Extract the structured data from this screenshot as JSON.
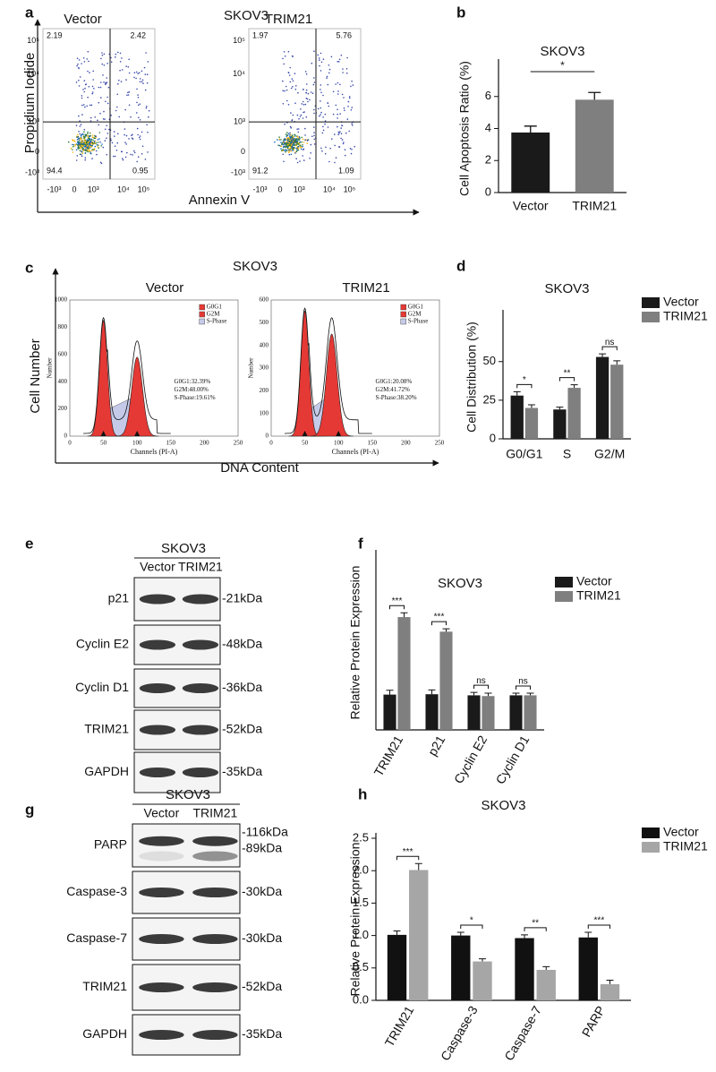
{
  "panels": {
    "a": {
      "panel_label": "a",
      "title": "SKOV3",
      "y_label": "Propidium Iodide",
      "x_label": "Annexin V",
      "y_ticks": [
        "10⁵",
        "10⁴",
        "10³",
        "0",
        "-10³"
      ],
      "x_ticks": [
        "-10³",
        "0",
        "10³",
        "10⁴",
        "10⁵"
      ],
      "plots": [
        {
          "name": "Vector",
          "quadrants": [
            2.19,
            2.42,
            94.4,
            0.95
          ]
        },
        {
          "name": "TRIM21",
          "quadrants": [
            1.97,
            5.76,
            91.2,
            1.09
          ]
        }
      ]
    },
    "c": {
      "panel_label": "c",
      "title": "SKOV3",
      "y_label": "Cell Number",
      "x_label": "DNA Content",
      "plots": [
        {
          "name": "Vector",
          "inner_y_label": "Number",
          "inner_x_label": "Channels (PI-A)",
          "x_ticks": [
            0,
            50,
            100,
            150,
            200,
            250
          ],
          "y_ticks": [
            0,
            200,
            400,
            600,
            800,
            1000
          ],
          "legend": [
            "G0G1",
            "G2M",
            "S-Phase"
          ],
          "stats": [
            "G0G1:32.39%",
            "G2M:48.00%",
            "S-Phase:19.61%"
          ]
        },
        {
          "name": "TRIM21",
          "inner_y_label": "Number",
          "inner_x_label": "Channels (PI-A)",
          "x_ticks": [
            0,
            50,
            100,
            150,
            200,
            250
          ],
          "y_ticks": [
            0,
            100,
            200,
            300,
            400,
            500,
            600
          ],
          "legend": [
            "G0G1",
            "G2M",
            "S-Phase"
          ],
          "stats": [
            "G0G1:20.08%",
            "G2M:41.72%",
            "S-Phase:38.20%"
          ]
        }
      ]
    },
    "e": {
      "panel_label": "e",
      "title": "SKOV3",
      "lanes": [
        "Vector",
        "TRIM21"
      ],
      "rows": [
        {
          "protein": "p21",
          "sizes": [
            "-21kDa"
          ]
        },
        {
          "protein": "Cyclin E2",
          "sizes": [
            "-48kDa"
          ]
        },
        {
          "protein": "Cyclin D1",
          "sizes": [
            "-36kDa"
          ]
        },
        {
          "protein": "TRIM21",
          "sizes": [
            "-52kDa"
          ]
        },
        {
          "protein": "GAPDH",
          "sizes": [
            "-35kDa"
          ]
        }
      ]
    },
    "g": {
      "panel_label": "g",
      "title": "SKOV3",
      "lanes": [
        "Vector",
        "TRIM21"
      ],
      "rows": [
        {
          "protein": "PARP",
          "sizes": [
            "-116kDa",
            "-89kDa"
          ]
        },
        {
          "protein": "Caspase-3",
          "sizes": [
            "-30kDa"
          ]
        },
        {
          "protein": "Caspase-7",
          "sizes": [
            "-30kDa"
          ]
        },
        {
          "protein": "TRIM21",
          "sizes": [
            "-52kDa"
          ]
        },
        {
          "protein": "GAPDH",
          "sizes": [
            "-35kDa"
          ]
        }
      ]
    }
  },
  "chart_data": [
    {
      "type": "bar",
      "panel_label": "b",
      "title": "SKOV3",
      "y_label": "Cell Apoptosis Ratio (%)",
      "categories": [
        "Vector",
        "TRIM21"
      ],
      "values": [
        3.75,
        5.8
      ],
      "errors": [
        0.4,
        0.45
      ],
      "colors": [
        "#1a1a1a",
        "#7f7f7f"
      ],
      "significance": "*",
      "ylim": [
        0,
        8
      ],
      "yticks": [
        0,
        2,
        4,
        6
      ]
    },
    {
      "type": "grouped-bar",
      "panel_label": "d",
      "title": "SKOV3",
      "y_label": "Cell Distribution (%)",
      "categories": [
        "G0/G1",
        "S",
        "G2/M"
      ],
      "series": [
        {
          "name": "Vector",
          "color": "#1a1a1a",
          "values": [
            28,
            19,
            53
          ],
          "errors": [
            2.5,
            1.5,
            2
          ]
        },
        {
          "name": "TRIM21",
          "color": "#7f7f7f",
          "values": [
            20,
            33,
            48
          ],
          "errors": [
            2,
            2,
            2.5
          ]
        }
      ],
      "significance": [
        "*",
        "**",
        "ns"
      ],
      "ylim": [
        0,
        80
      ],
      "yticks": [
        0,
        25,
        50
      ],
      "legend": "top-right"
    },
    {
      "type": "grouped-bar",
      "panel_label": "f",
      "title": "SKOV3",
      "y_label": "Relative Protein Expression",
      "categories": [
        "TRIM21",
        "p21",
        "Cyclin E2",
        "Cyclin D1"
      ],
      "series": [
        {
          "name": "Vector",
          "color": "#1a1a1a",
          "values": [
            0.97,
            0.98,
            0.95,
            0.95
          ],
          "errors": [
            0.12,
            0.12,
            0.08,
            0.06
          ]
        },
        {
          "name": "TRIM21",
          "color": "#7f7f7f",
          "values": [
            3.1,
            2.7,
            0.93,
            0.95
          ],
          "errors": [
            0.12,
            0.08,
            0.08,
            0.06
          ]
        }
      ],
      "significance": [
        "***",
        "***",
        "ns",
        "ns"
      ],
      "ylim": [
        0,
        4.8
      ],
      "legend": "top-right"
    },
    {
      "type": "grouped-bar",
      "panel_label": "h",
      "title": "SKOV3",
      "y_label": "Relative Protein Expression",
      "categories": [
        "TRIM21",
        "Caspase-3",
        "Caspase-7",
        "PARP"
      ],
      "series": [
        {
          "name": "Vector",
          "color": "#111111",
          "values": [
            1.01,
            1.0,
            0.96,
            0.97
          ],
          "errors": [
            0.06,
            0.05,
            0.05,
            0.08
          ]
        },
        {
          "name": "TRIM21",
          "color": "#a6a6a6",
          "values": [
            2.01,
            0.6,
            0.47,
            0.25
          ],
          "errors": [
            0.1,
            0.04,
            0.05,
            0.06
          ]
        }
      ],
      "significance": [
        "***",
        "*",
        "**",
        "***"
      ],
      "ylim": [
        0,
        2.5
      ],
      "yticks": [
        {
          "value": 0,
          "label": "0.0"
        },
        0.5,
        {
          "value": 1,
          "label": "1.0"
        },
        1.5,
        {
          "value": 2,
          "label": "2.0"
        },
        2.5
      ],
      "legend": "top-right"
    }
  ]
}
